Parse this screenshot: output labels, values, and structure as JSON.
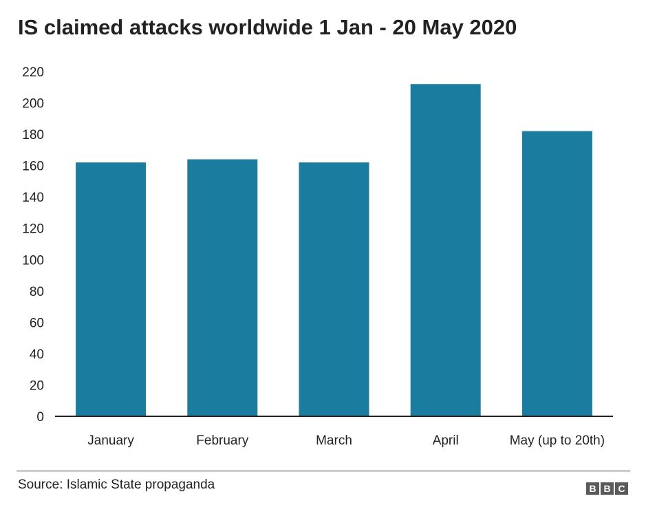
{
  "chart_data": {
    "type": "bar",
    "title": "IS claimed attacks worldwide 1 Jan - 20 May 2020",
    "categories": [
      "January",
      "February",
      "March",
      "April",
      "May (up to 20th)"
    ],
    "values": [
      162,
      164,
      162,
      212,
      182
    ],
    "ylim": [
      0,
      220
    ],
    "yticks": [
      0,
      20,
      40,
      60,
      80,
      100,
      120,
      140,
      160,
      180,
      200,
      220
    ],
    "xlabel": "",
    "ylabel": "",
    "grid": false,
    "legend": "none",
    "bar_color": "#1a7d9f"
  },
  "footer": {
    "source": "Source: Islamic State propaganda",
    "logo_letters": [
      "B",
      "B",
      "C"
    ]
  }
}
